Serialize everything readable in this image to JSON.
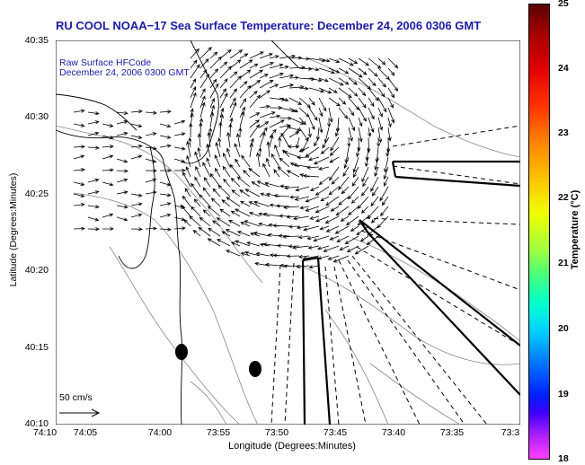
{
  "title": "RU COOL  NOAA−17  Sea Surface Temperature:  December 24, 2006 0306 GMT",
  "inset": {
    "line1": "Raw Surface HFCode",
    "line2": "December 24, 2006 0300 GMT"
  },
  "axes": {
    "xlabel": "Longitude (Degrees:Minutes)",
    "ylabel": "Latitude (Degrees:Minutes)",
    "x_ticks": [
      "74:10",
      "74:05",
      "74:00",
      "73:55",
      "73:50",
      "73:45",
      "73:40",
      "73:35",
      "73:3"
    ],
    "y_ticks": [
      "40:35",
      "40:30",
      "40:25",
      "40:20",
      "40:15",
      "40:10"
    ]
  },
  "colorbar": {
    "label": "Temperature (°C)",
    "ticks": [
      "25",
      "24",
      "23",
      "22",
      "21",
      "20",
      "19",
      "18"
    ],
    "range": [
      18,
      25
    ]
  },
  "scale": {
    "label": "50 cm/s"
  },
  "colors": {
    "title": "#1a1aa8",
    "coast": "#000000",
    "contour": "#888888"
  }
}
